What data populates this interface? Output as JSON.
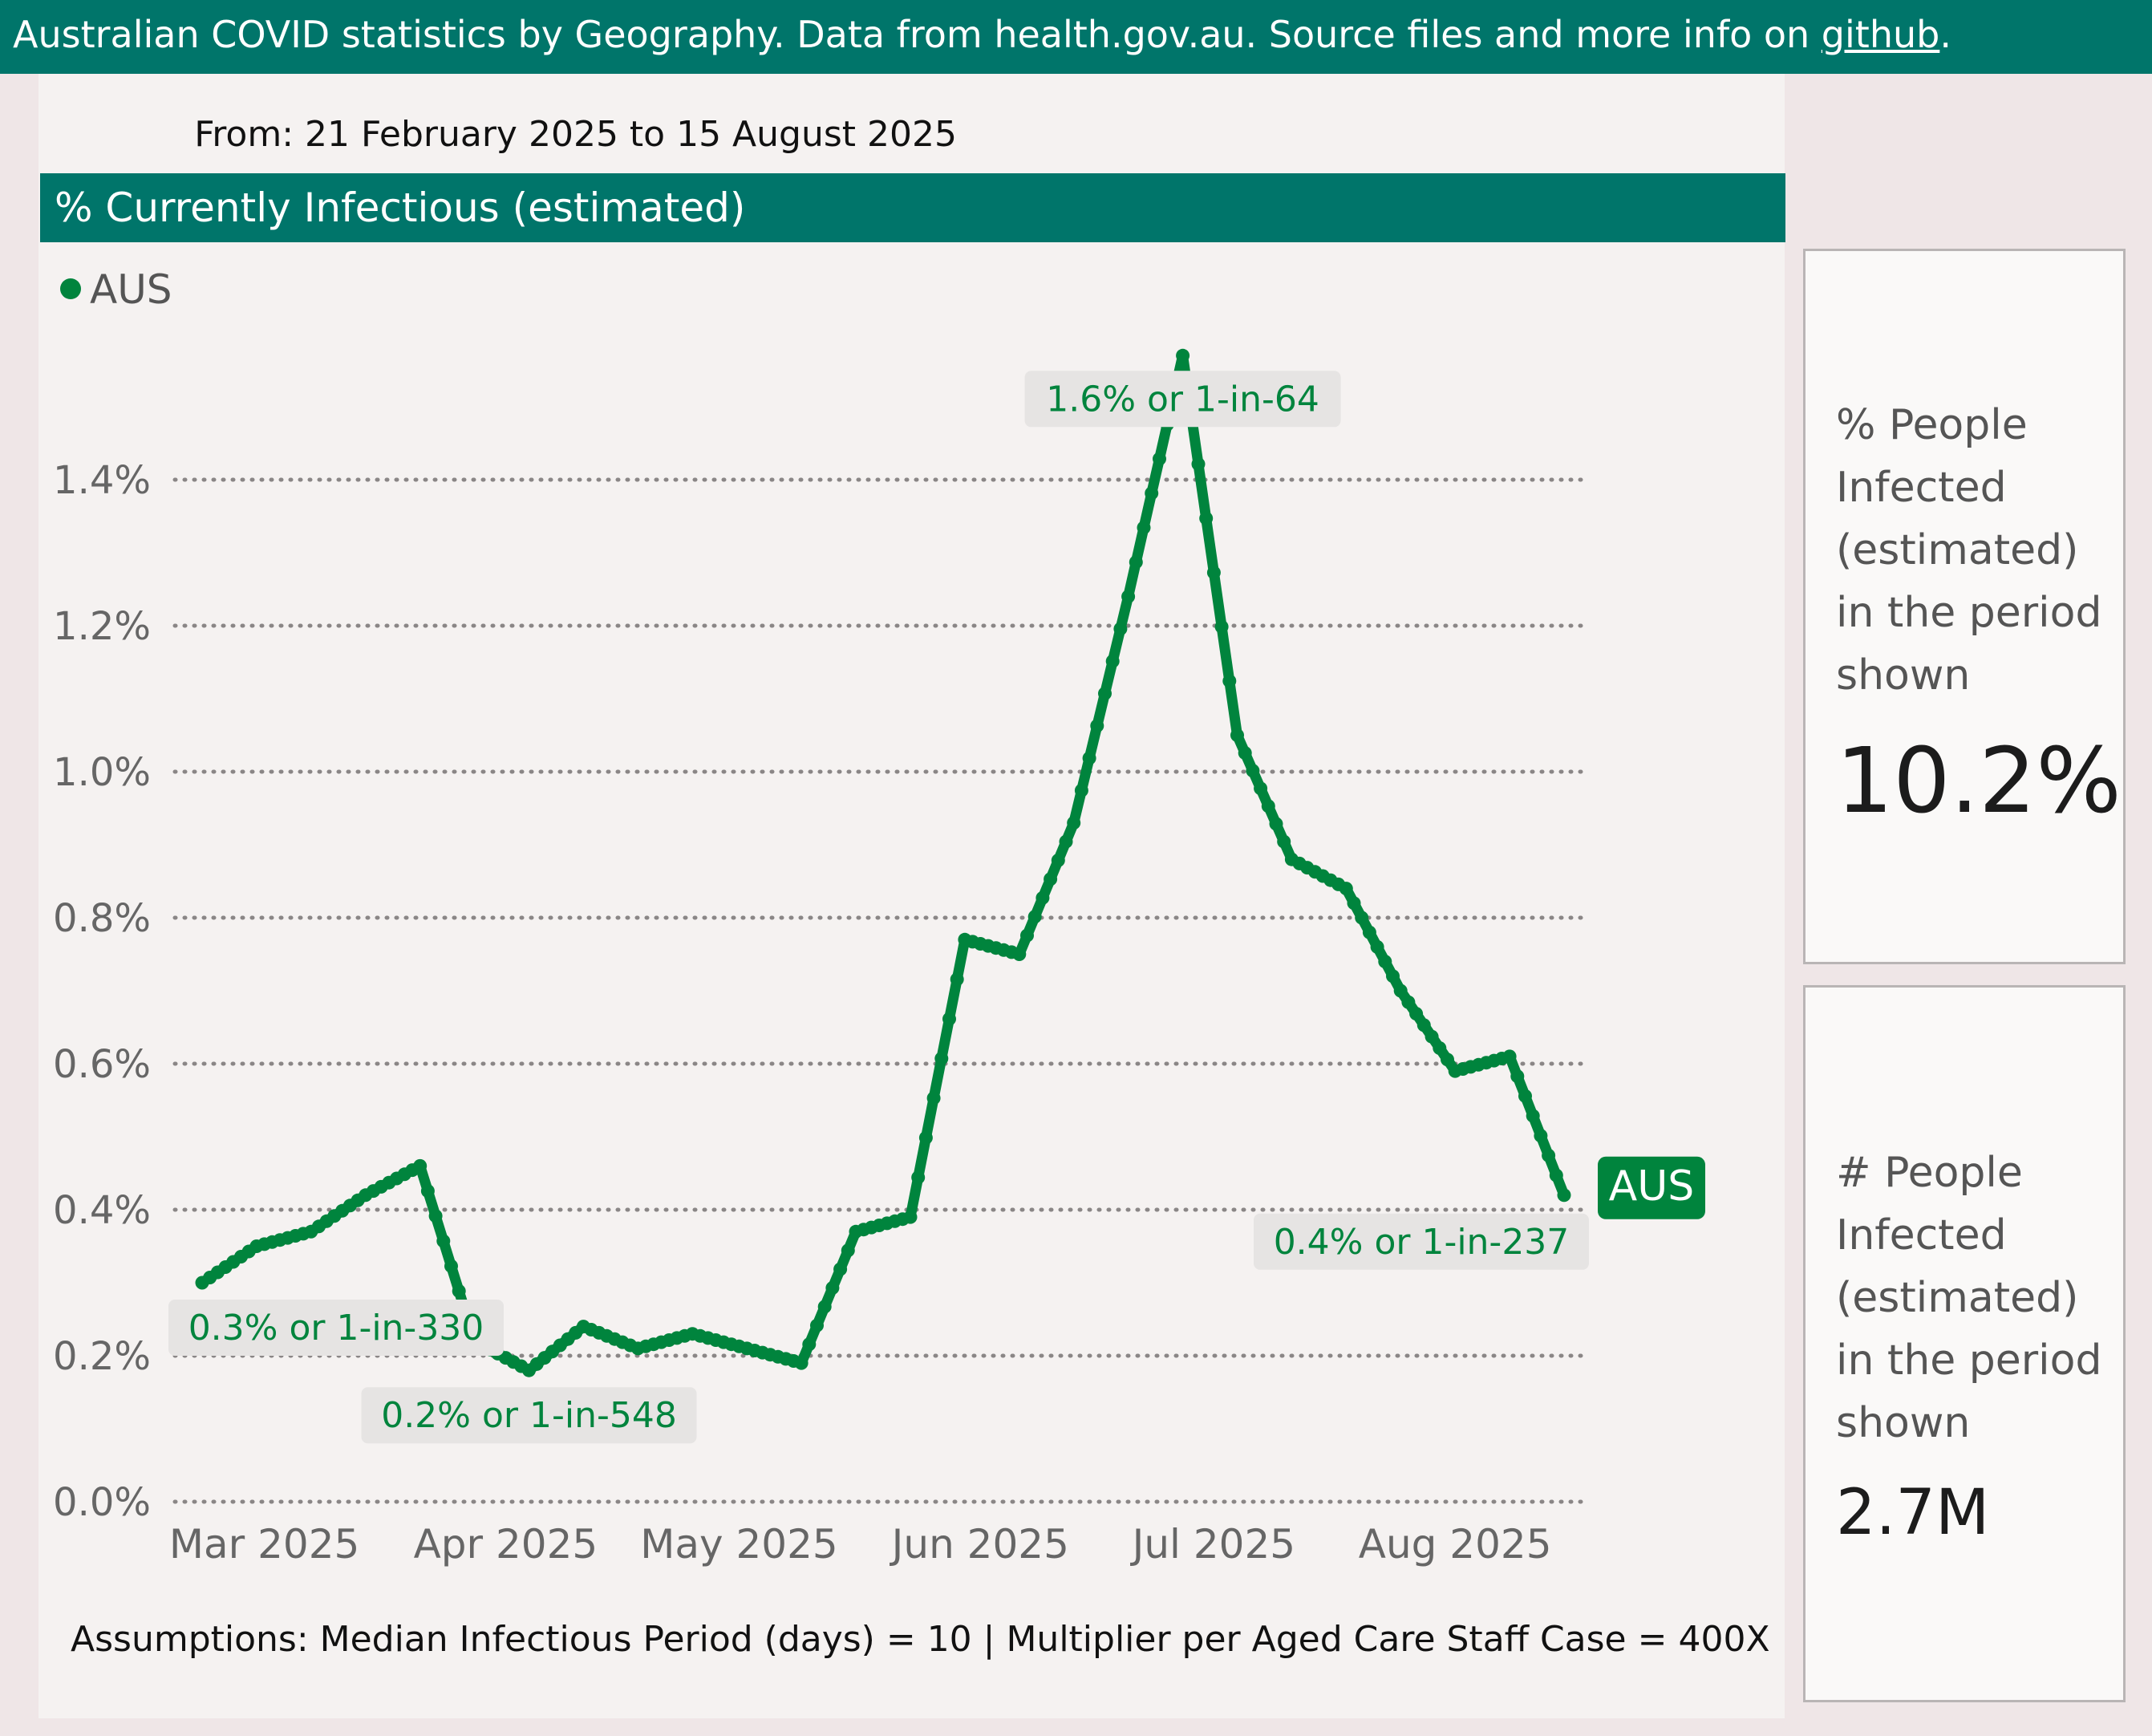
{
  "header": {
    "text_before_link": "Australian COVID statistics by Geography. Data from health.gov.au. Source files and more info on ",
    "link_text": "github",
    "text_after_link": "."
  },
  "date_range": "From: 21 February 2025 to 15 August 2025",
  "chart_header": "% Currently Infectious (estimated)",
  "footer": "Assumptions: Median Infectious Period (days) = 10 | Multiplier per Aged Care Staff Case = 400X",
  "cards": {
    "percent": {
      "label": "% People Infected (estimated) in the period shown",
      "value": "10.2%"
    },
    "count": {
      "label": "# People Infected (estimated) in the period shown",
      "value": "2.7M"
    }
  },
  "colors": {
    "brand": "#00756a",
    "series": "#00843d",
    "background": "#efe6e7",
    "panel": "#f5f2f1"
  },
  "chart_data": {
    "type": "line",
    "title": "% Currently Infectious (estimated)",
    "xlabel": "",
    "ylabel": "",
    "ylim": [
      0,
      1.6
    ],
    "y_ticks": [
      0.0,
      0.2,
      0.4,
      0.6,
      0.8,
      1.0,
      1.2,
      1.4
    ],
    "y_tick_labels": [
      "0.0%",
      "0.2%",
      "0.4%",
      "0.6%",
      "0.8%",
      "1.0%",
      "1.2%",
      "1.4%"
    ],
    "x_range": [
      "2025-02-21",
      "2025-08-15"
    ],
    "x_ticks": [
      {
        "date": "2025-03-01",
        "label": "Mar 2025"
      },
      {
        "date": "2025-04-01",
        "label": "Apr 2025"
      },
      {
        "date": "2025-05-01",
        "label": "May 2025"
      },
      {
        "date": "2025-06-01",
        "label": "Jun 2025"
      },
      {
        "date": "2025-07-01",
        "label": "Jul 2025"
      },
      {
        "date": "2025-08-01",
        "label": "Aug 2025"
      }
    ],
    "grid": "horizontal dotted",
    "legend": "top-left",
    "series": [
      {
        "name": "AUS",
        "color": "#00843d",
        "points": [
          {
            "x": "2025-02-21",
            "y": 0.3
          },
          {
            "x": "2025-02-28",
            "y": 0.35
          },
          {
            "x": "2025-03-07",
            "y": 0.37
          },
          {
            "x": "2025-03-14",
            "y": 0.42
          },
          {
            "x": "2025-03-21",
            "y": 0.46
          },
          {
            "x": "2025-03-28",
            "y": 0.22
          },
          {
            "x": "2025-04-04",
            "y": 0.18
          },
          {
            "x": "2025-04-11",
            "y": 0.24
          },
          {
            "x": "2025-04-18",
            "y": 0.21
          },
          {
            "x": "2025-04-25",
            "y": 0.23
          },
          {
            "x": "2025-05-02",
            "y": 0.21
          },
          {
            "x": "2025-05-09",
            "y": 0.19
          },
          {
            "x": "2025-05-16",
            "y": 0.37
          },
          {
            "x": "2025-05-23",
            "y": 0.39
          },
          {
            "x": "2025-05-30",
            "y": 0.77
          },
          {
            "x": "2025-06-06",
            "y": 0.75
          },
          {
            "x": "2025-06-13",
            "y": 0.93
          },
          {
            "x": "2025-06-20",
            "y": 1.24
          },
          {
            "x": "2025-06-27",
            "y": 1.57
          },
          {
            "x": "2025-07-04",
            "y": 1.05
          },
          {
            "x": "2025-07-11",
            "y": 0.88
          },
          {
            "x": "2025-07-18",
            "y": 0.84
          },
          {
            "x": "2025-07-25",
            "y": 0.7
          },
          {
            "x": "2025-08-01",
            "y": 0.59
          },
          {
            "x": "2025-08-08",
            "y": 0.61
          },
          {
            "x": "2025-08-15",
            "y": 0.42
          }
        ],
        "end_label": "AUS"
      }
    ],
    "annotations": [
      {
        "x": "2025-02-21",
        "y": 0.3,
        "text": "0.3% or 1-in-330",
        "position": "below"
      },
      {
        "x": "2025-04-04",
        "y": 0.18,
        "text": "0.2% or 1-in-548",
        "position": "below"
      },
      {
        "x": "2025-06-27",
        "y": 1.57,
        "text": "1.6% or 1-in-64",
        "position": "on"
      },
      {
        "x": "2025-08-15",
        "y": 0.42,
        "text": "0.4% or 1-in-237",
        "position": "below-left"
      }
    ]
  }
}
